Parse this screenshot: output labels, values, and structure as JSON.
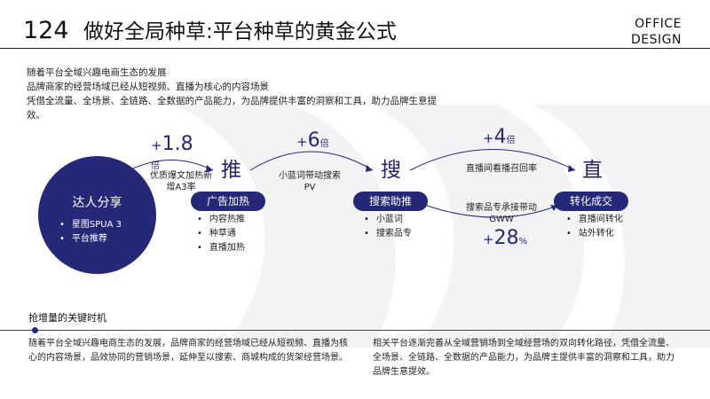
{
  "header": {
    "number": "124",
    "title": "做好全局种草:平台种草的黄金公式",
    "brand_line1": "OFFICE",
    "brand_line2": "DESIGN"
  },
  "intro": {
    "lines": [
      "随着平台全域兴趣电商生态的发展",
      "品牌商家的经营场域已经从短视频、直播为核心的内容场景",
      "凭借全流量、全场景、全链路、全数据的产品能力，为品牌提供丰富的洞察和工具，助力品牌生意提效。"
    ]
  },
  "talent": {
    "title": "达人分享",
    "items": [
      "星图SPUA 3",
      "平台推荐"
    ]
  },
  "stages": [
    {
      "char": "推",
      "pill": "广告加热",
      "items": [
        "内容热推",
        "种草通",
        "直播加热"
      ]
    },
    {
      "char": "搜",
      "pill": "搜索助推",
      "items": [
        "小蓝词",
        "搜索品专"
      ]
    },
    {
      "char": "直",
      "pill": "转化成交",
      "items": [
        "直播间转化",
        "站外转化"
      ]
    }
  ],
  "multipliers": [
    {
      "plus": "+",
      "value": "1.8",
      "unit": "倍",
      "note_line1": "优质爆文加热新",
      "note_line2": "增A3率"
    },
    {
      "plus": "+",
      "value": "6",
      "unit": "倍",
      "note_line1": "小蓝词带动搜索",
      "note_line2": "PV"
    },
    {
      "plus": "+",
      "value": "4",
      "unit": "倍",
      "note_line1": "直播间看播召回率",
      "note_line2": ""
    },
    {
      "plus": "+",
      "value": "28",
      "unit": "%",
      "note_line1": "搜索品专承接带动",
      "note_line2": "GWW"
    }
  ],
  "section": {
    "heading": "抢增量的关键时机",
    "left_text": "随着平台全域兴趣电商生态的发展，品牌商家的经营场域已经从短视频、直播为核心的内容场景，品效协同的营销场景，延伸至以搜索、商城构成的货架经营场景。",
    "right_text": "相关平台逐渐完善从全域营销场到全域经营场的双向转化路径，凭借全流量、全场景、全链路、全数据的产品能力，为品牌主提供丰富的洞察和工具，助力品牌生意提效。"
  },
  "colors": {
    "accent": "#252877",
    "arc_fill": "#f1f1f3"
  }
}
